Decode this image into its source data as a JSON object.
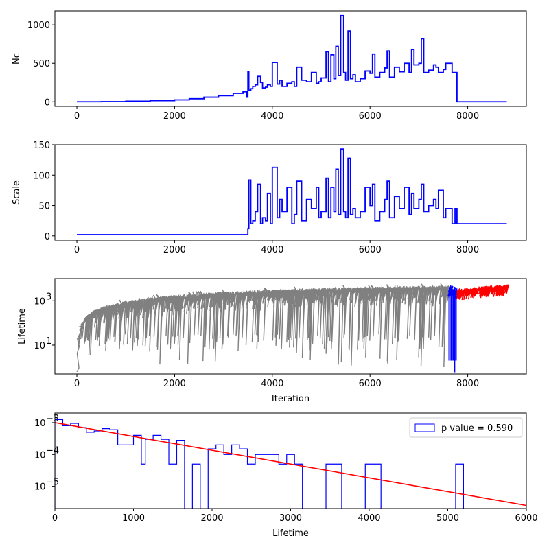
{
  "chart_data": [
    {
      "type": "line",
      "id": "nc",
      "ylabel": "Nc",
      "xlabel": "",
      "xlim": [
        -450,
        9200
      ],
      "ylim": [
        -60,
        1180
      ],
      "xticks": [
        0,
        2000,
        4000,
        6000,
        8000
      ],
      "yticks": [
        0,
        500,
        1000
      ],
      "tick_labels": [
        "0",
        "2000",
        "4000",
        "6000",
        "8000",
        "0",
        "500",
        "1000"
      ],
      "series": [
        {
          "color": "#0000ff",
          "style": "step",
          "x": [
            0,
            500,
            1000,
            1500,
            2000,
            2300,
            2600,
            2900,
            3200,
            3400,
            3480,
            3500,
            3520,
            3560,
            3600,
            3650,
            3700,
            3760,
            3800,
            3860,
            3900,
            3960,
            4000,
            4100,
            4150,
            4200,
            4300,
            4400,
            4450,
            4500,
            4600,
            4700,
            4800,
            4900,
            4950,
            5000,
            5100,
            5150,
            5200,
            5260,
            5300,
            5350,
            5400,
            5460,
            5500,
            5550,
            5600,
            5650,
            5700,
            5800,
            5900,
            6000,
            6050,
            6100,
            6200,
            6300,
            6350,
            6400,
            6500,
            6600,
            6700,
            6800,
            6850,
            6900,
            7000,
            7050,
            7100,
            7200,
            7300,
            7350,
            7400,
            7500,
            7550,
            7600,
            7680,
            7740,
            7780,
            8000,
            8800
          ],
          "y": [
            0,
            2,
            8,
            15,
            25,
            40,
            60,
            80,
            110,
            130,
            60,
            390,
            150,
            170,
            200,
            220,
            330,
            250,
            180,
            190,
            220,
            200,
            510,
            230,
            280,
            200,
            240,
            260,
            200,
            450,
            280,
            260,
            380,
            240,
            260,
            310,
            650,
            260,
            610,
            300,
            720,
            340,
            1120,
            380,
            280,
            920,
            300,
            350,
            260,
            300,
            400,
            370,
            620,
            320,
            380,
            440,
            660,
            320,
            450,
            390,
            500,
            380,
            680,
            480,
            500,
            820,
            380,
            410,
            480,
            450,
            380,
            420,
            500,
            500,
            380,
            380,
            0,
            0,
            0
          ]
        }
      ]
    },
    {
      "type": "line",
      "id": "scale",
      "ylabel": "Scale",
      "xlabel": "",
      "xlim": [
        -450,
        9200
      ],
      "ylim": [
        -7,
        150
      ],
      "xticks": [
        0,
        2000,
        4000,
        6000,
        8000
      ],
      "yticks": [
        0,
        50,
        100,
        150
      ],
      "tick_labels": [
        "0",
        "2000",
        "4000",
        "6000",
        "8000",
        "0",
        "50",
        "100",
        "150"
      ],
      "series": [
        {
          "color": "#0000ff",
          "style": "step",
          "x": [
            0,
            3500,
            3520,
            3560,
            3600,
            3650,
            3700,
            3760,
            3800,
            3860,
            3900,
            3960,
            4000,
            4100,
            4150,
            4200,
            4300,
            4400,
            4450,
            4500,
            4600,
            4700,
            4800,
            4900,
            4950,
            5000,
            5100,
            5150,
            5200,
            5260,
            5300,
            5350,
            5400,
            5460,
            5500,
            5550,
            5600,
            5650,
            5700,
            5800,
            5900,
            6000,
            6050,
            6100,
            6200,
            6300,
            6350,
            6400,
            6500,
            6600,
            6700,
            6800,
            6850,
            6900,
            7000,
            7050,
            7100,
            7200,
            7300,
            7350,
            7400,
            7500,
            7550,
            7600,
            7680,
            7740,
            7780,
            8800
          ],
          "y": [
            2,
            12,
            92,
            20,
            25,
            40,
            85,
            20,
            30,
            25,
            70,
            20,
            113,
            30,
            60,
            40,
            80,
            20,
            35,
            90,
            25,
            60,
            45,
            80,
            30,
            40,
            95,
            30,
            80,
            40,
            110,
            35,
            143,
            40,
            30,
            128,
            35,
            45,
            30,
            40,
            80,
            50,
            85,
            25,
            40,
            60,
            90,
            30,
            65,
            45,
            80,
            35,
            70,
            45,
            60,
            85,
            40,
            50,
            60,
            45,
            75,
            30,
            45,
            45,
            20,
            45,
            20,
            20
          ]
        }
      ]
    },
    {
      "type": "line",
      "id": "lifetime",
      "ylabel": "Lifetime",
      "xlabel": "Iteration",
      "xlim": [
        -450,
        9200
      ],
      "ylim_log": [
        0.5,
        10000
      ],
      "xticks": [
        0,
        2000,
        4000,
        6000,
        8000
      ],
      "yticks": [
        10,
        1000
      ],
      "tick_labels": [
        "0",
        "2000",
        "4000",
        "6000",
        "8000",
        "10",
        "3"
      ],
      "series": [
        {
          "color": "#808080",
          "x_range": [
            0,
            7600
          ],
          "envelope_upper": [
            [
              0,
              1
            ],
            [
              50,
              60
            ],
            [
              200,
              200
            ],
            [
              600,
              500
            ],
            [
              1500,
              1100
            ],
            [
              3000,
              2000
            ],
            [
              5000,
              2900
            ],
            [
              7600,
              3800
            ]
          ],
          "peak": 5000
        },
        {
          "color": "#0000ff",
          "x_range": [
            7600,
            7750
          ],
          "envelope_upper": [
            [
              7600,
              3500
            ],
            [
              7750,
              3000
            ]
          ],
          "peak": 4500
        },
        {
          "color": "#ff0000",
          "x_range": [
            7750,
            8800
          ],
          "envelope_upper": [
            [
              7750,
              2500
            ],
            [
              8800,
              4000
            ]
          ],
          "peak": 6000
        }
      ]
    },
    {
      "type": "histogram",
      "id": "lifetime_hist",
      "xlabel": "Lifetime",
      "ylabel": "",
      "xlim": [
        0,
        6000
      ],
      "ylim_log": [
        2e-06,
        0.002
      ],
      "xticks": [
        0,
        1000,
        2000,
        3000,
        4000,
        5000,
        6000
      ],
      "yticks": [
        1e-05,
        0.0001,
        0.001
      ],
      "tick_labels": [
        "0",
        "1000",
        "2000",
        "3000",
        "4000",
        "5000",
        "6000",
        "10",
        "−5",
        "10",
        "−4",
        "10",
        "−3"
      ],
      "legend": {
        "label": "p value = 0.590",
        "placement": "top-right"
      },
      "series": [
        {
          "name": "p value = 0.590",
          "color": "#0000ff",
          "style": "step-histogram",
          "bin_edges": [
            0,
            100,
            200,
            300,
            400,
            500,
            600,
            700,
            800,
            1000,
            1100,
            1150,
            1250,
            1350,
            1450,
            1550,
            1650,
            1750,
            1850,
            1950,
            2050,
            2150,
            2250,
            2350,
            2450,
            2550,
            2650,
            2850,
            2950,
            3050,
            3150,
            3450,
            3650,
            3950,
            4150,
            4250,
            5100,
            5200
          ],
          "values": [
            0.00125,
            0.0008,
            0.00095,
            0.0007,
            0.0005,
            0.00055,
            0.00065,
            0.0006,
            0.0002,
            0.0004,
            5e-05,
            0.0003,
            0.0004,
            0.0003,
            5e-05,
            0.00028,
            1e-06,
            5e-05,
            1e-06,
            0.00015,
            0.0002,
            0.0001,
            0.0002,
            0.00015,
            5e-05,
            0.0001,
            0.0001,
            5e-05,
            0.0001,
            5e-05,
            1e-06,
            5e-05,
            1e-06,
            5e-05,
            1e-06,
            1e-06,
            5e-05
          ]
        },
        {
          "name": "",
          "color": "#ff0000",
          "style": "line",
          "x": [
            0,
            6000
          ],
          "y": [
            0.001,
            2.5e-06
          ]
        }
      ]
    }
  ]
}
